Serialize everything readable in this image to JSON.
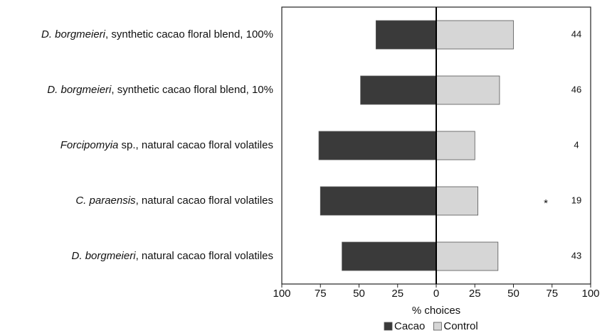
{
  "chart_data": {
    "type": "diverging-bar",
    "categories": [
      [
        "D. borgmeieri",
        ", synthetic cacao floral blend, 100%"
      ],
      [
        "D. borgmeieri",
        ", synthetic cacao floral blend, 10%"
      ],
      [
        "Forcipomyia",
        " sp., natural cacao floral volatiles"
      ],
      [
        "C. paraensis",
        ", natural cacao floral volatiles"
      ],
      [
        "D. borgmeieri",
        ", natural cacao floral volatiles"
      ]
    ],
    "series": [
      {
        "name": "Cacao",
        "color": "#3a3a3a",
        "values": [
          -39,
          -49,
          -76,
          -75,
          -61
        ]
      },
      {
        "name": "Control",
        "color": "#d6d6d6",
        "values": [
          50,
          41,
          25,
          27,
          40
        ]
      }
    ],
    "n_labels": [
      44,
      46,
      4,
      19,
      43
    ],
    "significance": [
      null,
      null,
      null,
      "*",
      null
    ],
    "xlabel": "% choices",
    "xlim": [
      -100,
      100
    ],
    "xticks": [
      {
        "value": -100,
        "label": "100"
      },
      {
        "value": -75,
        "label": "75"
      },
      {
        "value": -50,
        "label": "50"
      },
      {
        "value": -25,
        "label": "25"
      },
      0,
      25,
      50,
      75,
      100
    ],
    "legend": "bottom"
  }
}
